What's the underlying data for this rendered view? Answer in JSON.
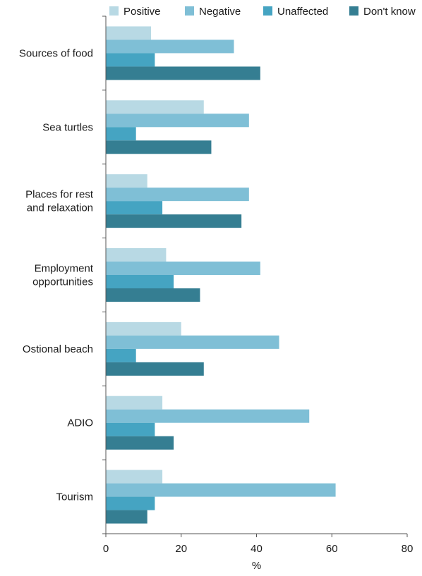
{
  "chart_data": {
    "type": "bar",
    "orientation": "horizontal",
    "categories": [
      [
        "Sources of food"
      ],
      [
        "Sea turtles"
      ],
      [
        "Places for rest",
        "and relaxation"
      ],
      [
        "Employment",
        "opportunities"
      ],
      [
        "Ostional beach"
      ],
      [
        "ADIO"
      ],
      [
        "Tourism"
      ]
    ],
    "series": [
      {
        "name": "Positive",
        "color": "#b8d9e4",
        "values": [
          12,
          26,
          11,
          16,
          20,
          15,
          15
        ]
      },
      {
        "name": "Negative",
        "color": "#7fbfd6",
        "values": [
          34,
          38,
          38,
          41,
          46,
          54,
          61
        ]
      },
      {
        "name": "Unaffected",
        "color": "#45a4c2",
        "values": [
          13,
          8,
          15,
          18,
          8,
          13,
          13
        ]
      },
      {
        "name": "Don't know",
        "color": "#357e92",
        "values": [
          41,
          28,
          36,
          25,
          26,
          18,
          11
        ]
      }
    ],
    "xlabel": "%",
    "xlim": [
      0,
      80
    ],
    "xticks": [
      0,
      20,
      40,
      60,
      80
    ],
    "legend_position": "top",
    "grid": false
  }
}
